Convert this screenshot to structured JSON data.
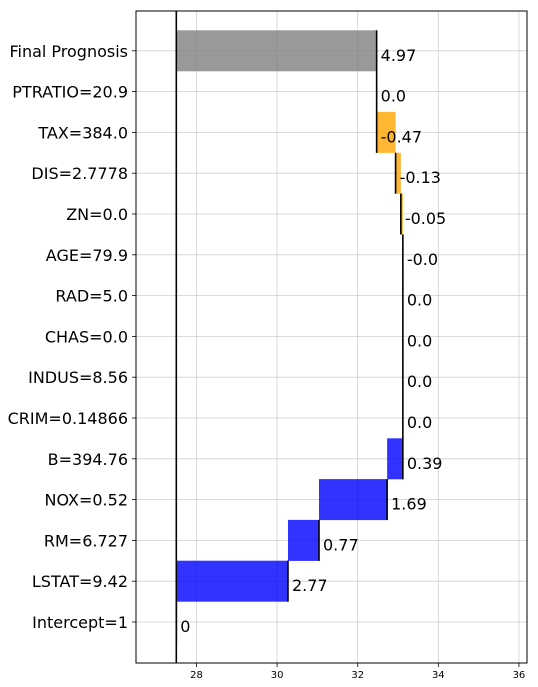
{
  "chart_data": {
    "type": "bar",
    "subtype": "waterfall-horizontal",
    "title": "",
    "xlabel": "",
    "ylabel": "",
    "xlim": [
      26.5,
      36.2
    ],
    "x_ticks": [
      28,
      30,
      32,
      34,
      36
    ],
    "baseline": 27.5,
    "grid": true,
    "bars": [
      {
        "label": "Intercept=1",
        "start": 27.5,
        "end": 27.5,
        "value_label": "0",
        "kind": "intercept"
      },
      {
        "label": "LSTAT=9.42",
        "start": 27.5,
        "end": 30.27,
        "value_label": "2.77",
        "kind": "positive"
      },
      {
        "label": "RM=6.727",
        "start": 30.27,
        "end": 31.04,
        "value_label": "0.77",
        "kind": "positive"
      },
      {
        "label": "NOX=0.52",
        "start": 31.04,
        "end": 32.73,
        "value_label": "1.69",
        "kind": "positive"
      },
      {
        "label": "B=394.76",
        "start": 32.73,
        "end": 33.12,
        "value_label": "0.39",
        "kind": "positive"
      },
      {
        "label": "CRIM=0.14866",
        "start": 33.12,
        "end": 33.12,
        "value_label": "0.0",
        "kind": "zero"
      },
      {
        "label": "INDUS=8.56",
        "start": 33.12,
        "end": 33.12,
        "value_label": "0.0",
        "kind": "zero"
      },
      {
        "label": "CHAS=0.0",
        "start": 33.12,
        "end": 33.12,
        "value_label": "0.0",
        "kind": "zero"
      },
      {
        "label": "RAD=5.0",
        "start": 33.12,
        "end": 33.12,
        "value_label": "0.0",
        "kind": "zero"
      },
      {
        "label": "AGE=79.9",
        "start": 33.12,
        "end": 33.12,
        "value_label": "-0.0",
        "kind": "zero"
      },
      {
        "label": "ZN=0.0",
        "start": 33.12,
        "end": 33.07,
        "value_label": "-0.05",
        "kind": "negative"
      },
      {
        "label": "DIS=2.7778",
        "start": 33.07,
        "end": 32.94,
        "value_label": "-0.13",
        "kind": "negative"
      },
      {
        "label": "TAX=384.0",
        "start": 32.94,
        "end": 32.47,
        "value_label": "-0.47",
        "kind": "negative"
      },
      {
        "label": "PTRATIO=20.9",
        "start": 32.47,
        "end": 32.47,
        "value_label": "0.0",
        "kind": "zero"
      },
      {
        "label": "Final Prognosis",
        "start": 27.5,
        "end": 32.47,
        "value_label": "4.97",
        "kind": "final"
      }
    ],
    "colors": {
      "positive": "#0000ff",
      "negative": "#ffa500",
      "final": "#808080",
      "grid": "#d0d0d0",
      "axis": "#000000"
    }
  }
}
